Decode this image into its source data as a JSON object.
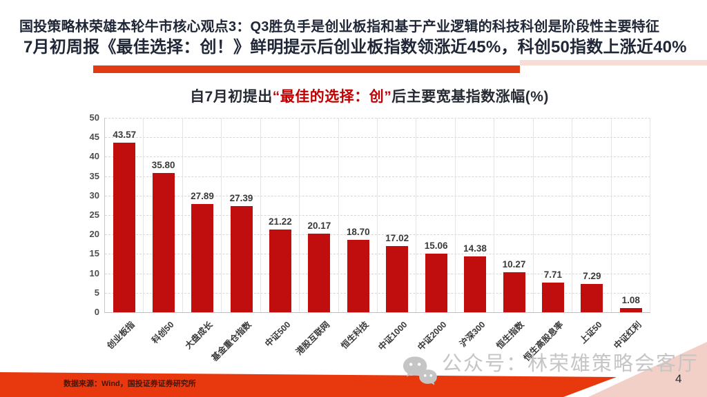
{
  "header": {
    "line1": "国投策略林荣雄本轮牛市核心观点3：Q3胜负手是创业板指和基于产业逻辑的科技科创是阶段性主要特征",
    "line2": "7月初周报《最佳选择：创！》鲜明提示后创业板指数领涨近45%，科创50指数上涨近40%"
  },
  "chart_title": {
    "prefix": "自7月初提出",
    "highlight": "“最佳的选择：创”",
    "suffix": "后主要宽基指数涨幅(%)"
  },
  "chart_data": {
    "type": "bar",
    "title": "自7月初提出“最佳的选择：创”后主要宽基指数涨幅(%)",
    "categories": [
      "创业板指",
      "科创50",
      "大盘成长",
      "基金重仓指数",
      "中证500",
      "港股互联网",
      "恒生科技",
      "中证1000",
      "中证2000",
      "沪深300",
      "恒生指数",
      "恒生高股息率",
      "上证50",
      "中证红利"
    ],
    "values": [
      43.57,
      35.8,
      27.89,
      27.39,
      21.22,
      20.17,
      18.7,
      17.02,
      15.06,
      14.38,
      10.27,
      7.71,
      7.29,
      1.08
    ],
    "xlabel": "",
    "ylabel": "",
    "ylim": [
      0,
      50
    ],
    "ytick_step": 5,
    "grid": true,
    "legend": "none",
    "bar_color": "#c00d0d"
  },
  "footer": {
    "source": "数据来源：Wind，国投证券证券研究所",
    "page_number": "4"
  },
  "watermark": {
    "icon": "wechat-icon",
    "text": "公众号：林荣雄策略会客厅"
  },
  "colors": {
    "bar": "#c00d0d",
    "header_text": "#1f2636",
    "title_highlight": "#c00000",
    "accent_band": "#e8380e",
    "underline_red": "#e23a12",
    "underline_pink": "#f7ddd5",
    "footer_pink": "#f3d0c7"
  }
}
